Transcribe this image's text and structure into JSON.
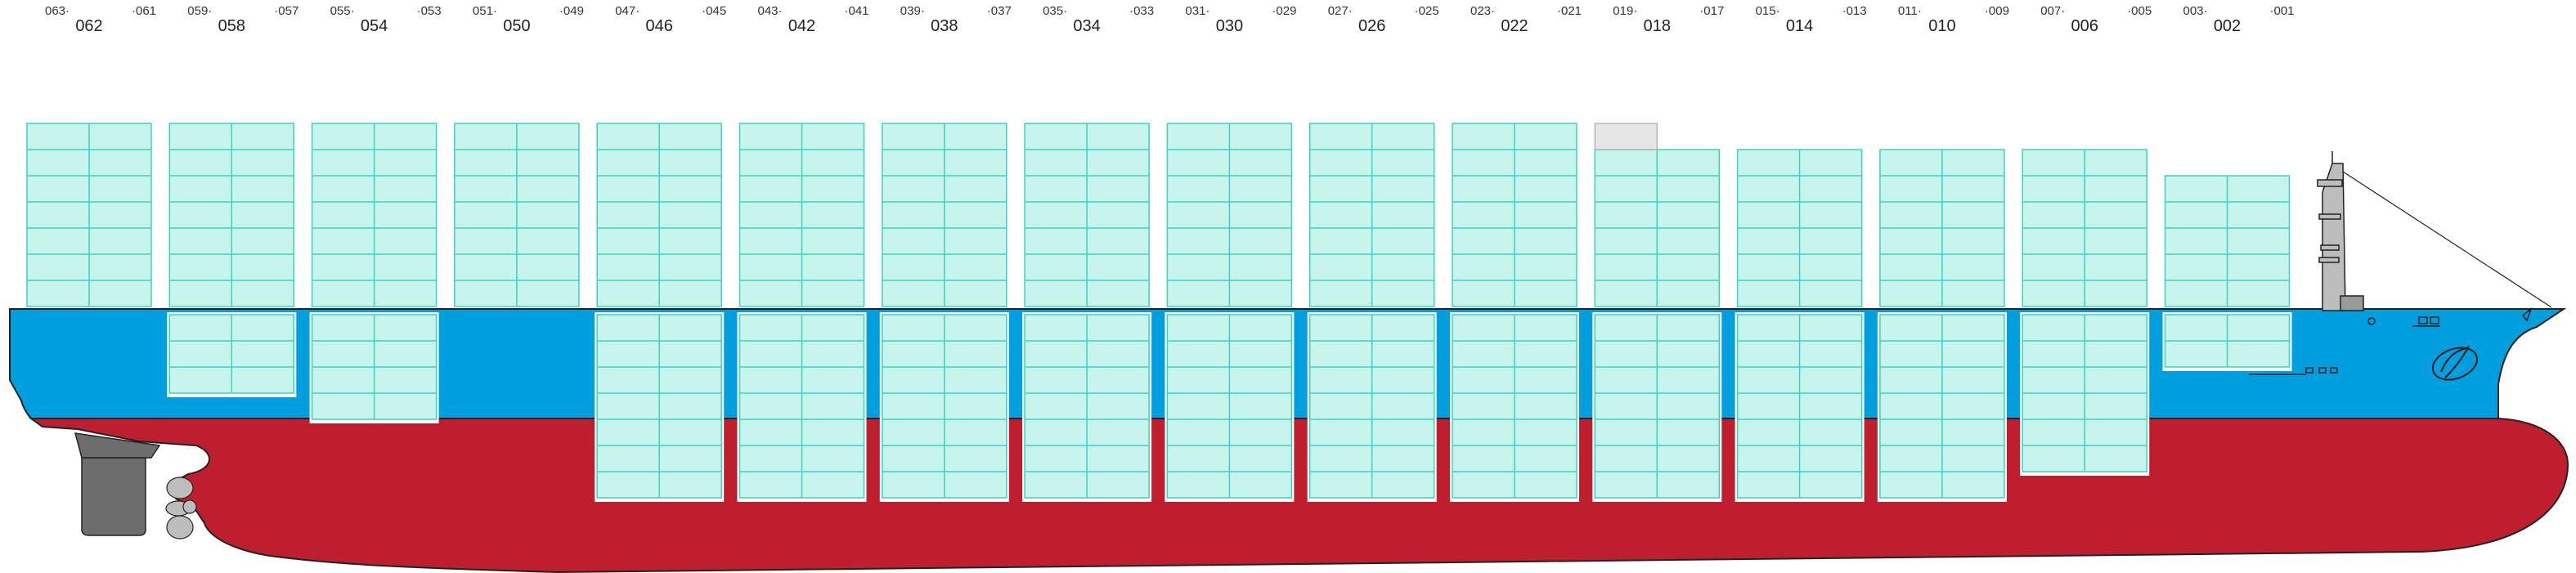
{
  "colors": {
    "hull_bottom": "#be1e2d",
    "hull_top": "#00a0e0",
    "container_fill": "#c8f4ee",
    "container_stroke": "#3fd1c0",
    "empty_slot": "#e6e6e6",
    "outline": "#222222",
    "rudder": "#6d6d6d",
    "propeller": "#bdbdbd"
  },
  "bays": [
    {
      "code": "062",
      "left": "063",
      "right": "061",
      "deck_tiers": 7,
      "hold_tiers": 0,
      "empty_top": false
    },
    {
      "code": "058",
      "left": "059",
      "right": "057",
      "deck_tiers": 7,
      "hold_tiers": 3,
      "empty_top": false
    },
    {
      "code": "054",
      "left": "055",
      "right": "053",
      "deck_tiers": 7,
      "hold_tiers": 4,
      "empty_top": false
    },
    {
      "code": "050",
      "left": "051",
      "right": "049",
      "deck_tiers": 7,
      "hold_tiers": 0,
      "empty_top": false
    },
    {
      "code": "046",
      "left": "047",
      "right": "045",
      "deck_tiers": 7,
      "hold_tiers": 7,
      "empty_top": false
    },
    {
      "code": "042",
      "left": "043",
      "right": "041",
      "deck_tiers": 7,
      "hold_tiers": 7,
      "empty_top": false
    },
    {
      "code": "038",
      "left": "039",
      "right": "037",
      "deck_tiers": 7,
      "hold_tiers": 7,
      "empty_top": false
    },
    {
      "code": "034",
      "left": "035",
      "right": "033",
      "deck_tiers": 7,
      "hold_tiers": 7,
      "empty_top": false
    },
    {
      "code": "030",
      "left": "031",
      "right": "029",
      "deck_tiers": 7,
      "hold_tiers": 7,
      "empty_top": false
    },
    {
      "code": "026",
      "left": "027",
      "right": "025",
      "deck_tiers": 7,
      "hold_tiers": 7,
      "empty_top": false
    },
    {
      "code": "022",
      "left": "023",
      "right": "021",
      "deck_tiers": 7,
      "hold_tiers": 7,
      "empty_top": false
    },
    {
      "code": "018",
      "left": "019",
      "right": "017",
      "deck_tiers": 6,
      "hold_tiers": 7,
      "empty_top": true
    },
    {
      "code": "014",
      "left": "015",
      "right": "013",
      "deck_tiers": 6,
      "hold_tiers": 7,
      "empty_top": false
    },
    {
      "code": "010",
      "left": "011",
      "right": "009",
      "deck_tiers": 6,
      "hold_tiers": 7,
      "empty_top": false
    },
    {
      "code": "006",
      "left": "007",
      "right": "005",
      "deck_tiers": 6,
      "hold_tiers": 6,
      "empty_top": false
    },
    {
      "code": "002",
      "left": "003",
      "right": "001",
      "deck_tiers": 5,
      "hold_tiers": 2,
      "empty_top": false
    }
  ]
}
